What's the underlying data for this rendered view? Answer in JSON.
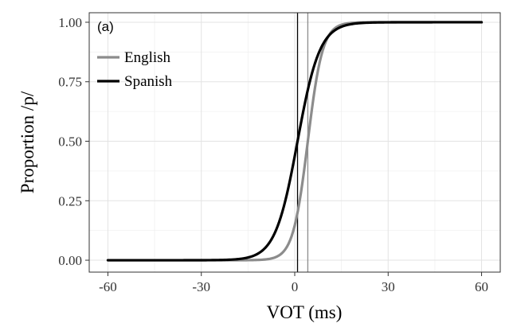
{
  "chart_data": {
    "type": "line",
    "panel_label": "(a)",
    "xlabel": "VOT (ms)",
    "ylabel": "Proportion /p/",
    "xlim": [
      -66,
      66
    ],
    "ylim": [
      -0.05,
      1.04
    ],
    "x_ticks": [
      -60,
      -30,
      0,
      30,
      60
    ],
    "x_tick_labels": [
      "-60",
      "-30",
      "0",
      "30",
      "60"
    ],
    "y_ticks": [
      0,
      0.25,
      0.5,
      0.75,
      1
    ],
    "y_tick_labels": [
      "0.00",
      "0.25",
      "0.50",
      "0.75",
      "1.00"
    ],
    "grid": true,
    "legend_position": "top-left",
    "x_range": [
      -60,
      60
    ],
    "series": [
      {
        "name": "English",
        "color": "#8c8c8c",
        "boundary": 4.2,
        "slope": 0.42
      },
      {
        "name": "Spanish",
        "color": "#000000",
        "boundary": 0.9,
        "slope": 0.28
      }
    ],
    "boundary_lines": [
      {
        "series": "English",
        "x": 4.2,
        "color": "#8c8c8c"
      },
      {
        "series": "Spanish",
        "x": 0.9,
        "color": "#000000"
      }
    ]
  }
}
